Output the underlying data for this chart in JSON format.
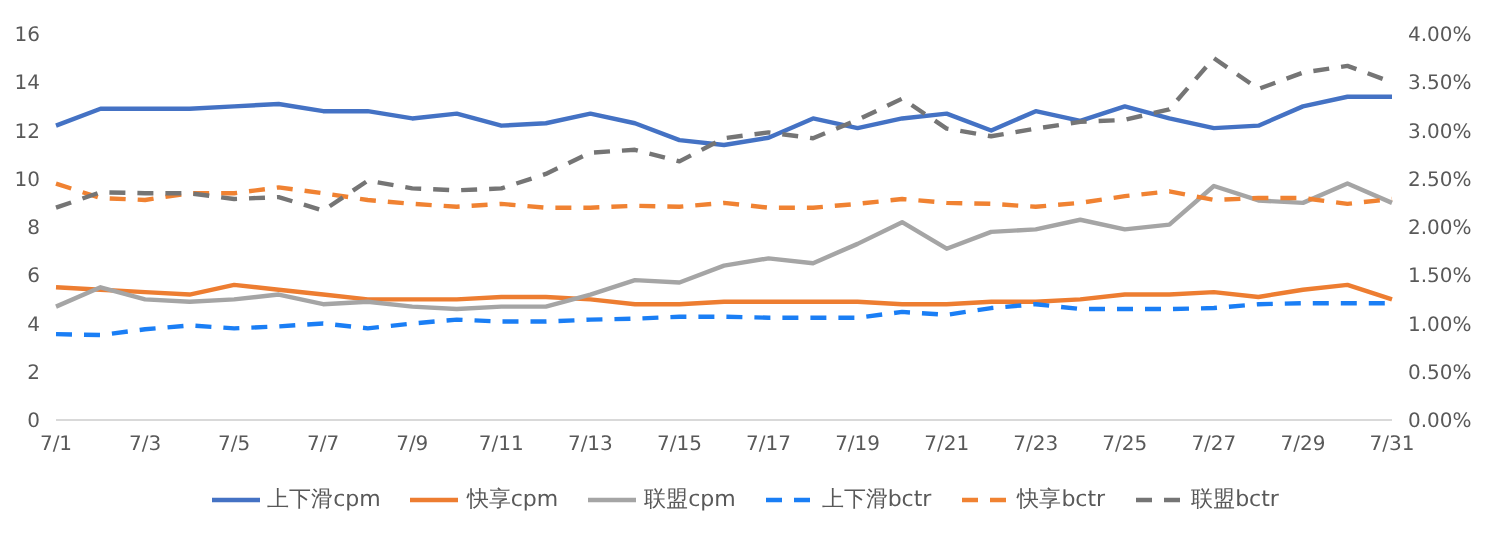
{
  "chart_data": {
    "type": "line",
    "categories": [
      "7/1",
      null,
      "7/3",
      null,
      "7/5",
      null,
      "7/7",
      null,
      "7/9",
      null,
      "7/11",
      null,
      "7/13",
      null,
      "7/15",
      null,
      "7/17",
      null,
      "7/19",
      null,
      "7/21",
      null,
      "7/23",
      null,
      "7/25",
      null,
      "7/27",
      null,
      "7/29",
      null,
      "7/31"
    ],
    "ylim": [
      0,
      16
    ],
    "yticks": [
      0,
      2,
      4,
      6,
      8,
      10,
      12,
      14,
      16
    ],
    "y2lim": [
      0,
      4
    ],
    "y2ticks": [
      {
        "value": 0,
        "label": "0.00%"
      },
      {
        "value": 0.5,
        "label": "0.50%"
      },
      {
        "value": 1,
        "label": "1.00%"
      },
      {
        "value": 1.5,
        "label": "1.50%"
      },
      {
        "value": 2,
        "label": "2.00%"
      },
      {
        "value": 2.5,
        "label": "2.50%"
      },
      {
        "value": 3,
        "label": "3.00%"
      },
      {
        "value": 3.5,
        "label": "3.50%"
      },
      {
        "value": 4,
        "label": "4.00%"
      }
    ],
    "grid": false,
    "legend": "bottom",
    "marker": "none",
    "series": [
      {
        "name": "上下滑cpm",
        "color": "#4472c4",
        "line_style": "solid",
        "values": [
          12.2,
          12.9,
          12.9,
          12.9,
          13.0,
          13.1,
          12.8,
          12.8,
          12.5,
          12.7,
          12.2,
          12.3,
          12.7,
          12.3,
          11.6,
          11.4,
          11.7,
          12.5,
          12.1,
          12.5,
          12.7,
          12.0,
          12.8,
          12.4,
          13.0,
          12.5,
          12.1,
          12.2,
          13.0,
          13.4,
          13.4
        ]
      },
      {
        "name": "快享cpm",
        "color": "#ed7d31",
        "line_style": "solid",
        "values": [
          5.5,
          5.4,
          5.3,
          5.2,
          5.6,
          5.4,
          5.2,
          5.0,
          5.0,
          5.0,
          5.1,
          5.1,
          5.0,
          4.8,
          4.8,
          4.9,
          4.9,
          4.9,
          4.9,
          4.8,
          4.8,
          4.9,
          4.9,
          5.0,
          5.2,
          5.2,
          5.3,
          5.1,
          5.4,
          5.6,
          5.0
        ]
      },
      {
        "name": "联盟cpm",
        "color": "#a5a5a5",
        "line_style": "solid",
        "values": [
          4.7,
          5.5,
          5.0,
          4.9,
          5.0,
          5.2,
          4.8,
          4.9,
          4.7,
          4.6,
          4.7,
          4.7,
          5.2,
          5.8,
          5.7,
          6.4,
          6.7,
          6.5,
          7.3,
          8.2,
          7.1,
          7.8,
          7.9,
          8.3,
          7.9,
          8.1,
          9.7,
          9.1,
          9.0,
          9.8,
          9.0
        ]
      },
      {
        "name": "上下滑bctr",
        "color": "#1a7ef5",
        "line_style": "dashed",
        "axis": "y2",
        "values": [
          0.89,
          0.88,
          0.94,
          0.98,
          0.95,
          0.97,
          1.0,
          0.95,
          1.0,
          1.04,
          1.02,
          1.02,
          1.04,
          1.05,
          1.07,
          1.07,
          1.06,
          1.06,
          1.06,
          1.12,
          1.09,
          1.16,
          1.2,
          1.15,
          1.15,
          1.15,
          1.16,
          1.2,
          1.21,
          1.21,
          1.21
        ]
      },
      {
        "name": "快享bctr",
        "color": "#f08232",
        "line_style": "dashed",
        "axis": "y2",
        "values": [
          2.45,
          2.3,
          2.28,
          2.35,
          2.35,
          2.41,
          2.35,
          2.28,
          2.24,
          2.21,
          2.24,
          2.2,
          2.2,
          2.22,
          2.21,
          2.25,
          2.2,
          2.2,
          2.24,
          2.29,
          2.25,
          2.24,
          2.21,
          2.25,
          2.32,
          2.37,
          2.28,
          2.3,
          2.3,
          2.24,
          2.29
        ]
      },
      {
        "name": "联盟bctr",
        "color": "#757575",
        "line_style": "dashed",
        "axis": "y2",
        "values": [
          2.2,
          2.36,
          2.35,
          2.35,
          2.29,
          2.31,
          2.17,
          2.48,
          2.4,
          2.38,
          2.4,
          2.55,
          2.77,
          2.8,
          2.68,
          2.92,
          2.98,
          2.92,
          3.11,
          3.33,
          3.02,
          2.94,
          3.02,
          3.09,
          3.11,
          3.22,
          3.75,
          3.43,
          3.6,
          3.67,
          3.5
        ]
      }
    ]
  }
}
